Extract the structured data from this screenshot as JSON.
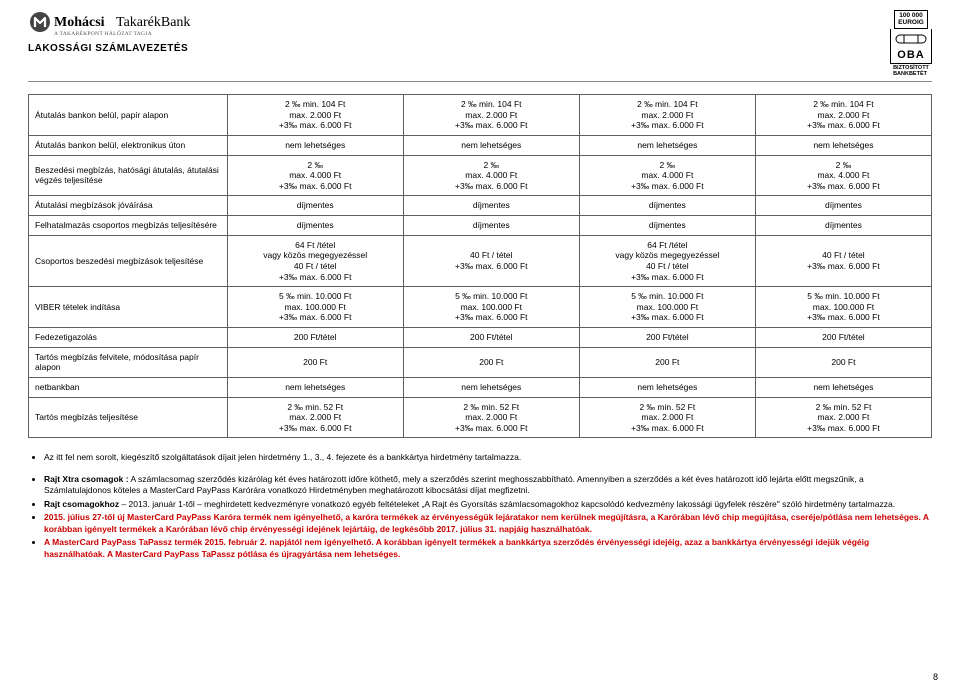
{
  "header": {
    "bank_name": "MohácsiTakarékBank",
    "tagline": "A TAKARÉKPONT HÁLÓZAT TAGJA",
    "subtitle": "LAKOSSÁGI SZÁMLAVEZETÉS",
    "oba_top": "100 000\nEUROIG",
    "oba_logo": "OBA",
    "oba_caption": "BIZTOSÍTOTT\nBANKBETÉT"
  },
  "table": {
    "rows": [
      {
        "label": "Átutalás bankon belül, papír alapon",
        "c1": "2 ‰ min. 104 Ft\nmax. 2.000 Ft\n+3‰ max. 6.000 Ft",
        "c2": "2 ‰ min. 104 Ft\nmax. 2.000 Ft\n+3‰ max. 6.000 Ft",
        "c3": "2 ‰ min. 104 Ft\nmax. 2.000 Ft\n+3‰ max. 6.000 Ft",
        "c4": "2 ‰ min. 104 Ft\nmax. 2.000 Ft\n+3‰ max. 6.000 Ft"
      },
      {
        "label": "Átutalás bankon belül, elektronikus úton",
        "c1": "nem lehetséges",
        "c2": "nem lehetséges",
        "c3": "nem lehetséges",
        "c4": "nem lehetséges"
      },
      {
        "label": "Beszedési megbízás, hatósági átutalás, átutalási végzés teljesítése",
        "c1": "2 ‰\nmax. 4.000 Ft\n+3‰ max. 6.000 Ft",
        "c2": "2 ‰\nmax. 4.000 Ft\n+3‰ max. 6.000 Ft",
        "c3": "2 ‰\nmax. 4.000 Ft\n+3‰ max. 6.000 Ft",
        "c4": "2 ‰\nmax. 4.000 Ft\n+3‰ max. 6.000 Ft"
      },
      {
        "label": "Átutalási megbízások jóváírása",
        "c1": "díjmentes",
        "c2": "díjmentes",
        "c3": "díjmentes",
        "c4": "díjmentes"
      },
      {
        "label": "Felhatalmazás csoportos megbízás teljesítésére",
        "c1": "díjmentes",
        "c2": "díjmentes",
        "c3": "díjmentes",
        "c4": "díjmentes"
      },
      {
        "label": "Csoportos beszedési megbízások teljesítése",
        "c1": "64 Ft /tétel\nvagy közös megegyezéssel\n40 Ft / tétel\n+3‰ max. 6.000 Ft",
        "c2": "40 Ft / tétel\n+3‰ max. 6.000 Ft",
        "c3": "64 Ft /tétel\nvagy közös megegyezéssel\n40 Ft / tétel\n+3‰ max. 6.000 Ft",
        "c4": "40 Ft / tétel\n+3‰ max. 6.000 Ft"
      },
      {
        "label": "VIBER tételek indítása",
        "c1": "5 ‰ min. 10.000 Ft\nmax. 100.000 Ft\n+3‰ max. 6.000 Ft",
        "c2": "5 ‰ min. 10.000 Ft\nmax. 100.000 Ft\n+3‰ max. 6.000 Ft",
        "c3": "5 ‰ min. 10.000 Ft\nmax. 100.000 Ft\n+3‰ max. 6.000 Ft",
        "c4": "5 ‰ min. 10.000 Ft\nmax. 100.000 Ft\n+3‰ max. 6.000 Ft"
      },
      {
        "label": "Fedezetigazolás",
        "c1": "200 Ft/tétel",
        "c2": "200 Ft/tétel",
        "c3": "200 Ft/tétel",
        "c4": "200 Ft/tétel"
      },
      {
        "label": "Tartós megbízás felvitele, módosítása papír alapon",
        "c1": "200 Ft",
        "c2": "200 Ft",
        "c3": "200 Ft",
        "c4": "200 Ft"
      },
      {
        "label": "netbankban",
        "c1": "nem lehetséges",
        "c2": "nem lehetséges",
        "c3": "nem lehetséges",
        "c4": "nem lehetséges"
      },
      {
        "label": "Tartós megbízás teljesítése",
        "c1": "2 ‰ min. 52 Ft\nmax. 2.000 Ft\n+3‰ max. 6.000 Ft",
        "c2": "2 ‰ min. 52 Ft\nmax. 2.000 Ft\n+3‰ max. 6.000 Ft",
        "c3": "2 ‰ min. 52 Ft\nmax. 2.000 Ft\n+3‰ max. 6.000 Ft",
        "c4": "2 ‰ min. 52 Ft\nmax. 2.000 Ft\n+3‰ max. 6.000 Ft"
      }
    ]
  },
  "notes": {
    "n1": "Az itt fel nem sorolt, kiegészítő szolgáltatások díjait jelen hirdetmény 1., 3., 4. fejezete és a bankkártya hirdetmény tartalmazza.",
    "n2b": "Rajt Xtra csomagok :",
    "n2": " A számlacsomag szerződés kizárólag két éves határozott időre köthető, mely a szerződés szerint meghosszabbítható. Amennyiben a szerződés a két éves határozott idő lejárta előtt megszűnik, a Számlatulajdonos köteles a MasterCard PayPass Karórára vonatkozó Hirdetményben meghatározott kibocsátási díjat megfizetni.",
    "n3b": "Rajt csomagokhoz",
    "n3": " – 2013. január 1-től – meghirdetett kedvezményre vonatkozó egyéb feltételeket „A Rajt és Gyorsítás számlacsomagokhoz kapcsolódó kedvezmény lakossági ügyfelek részére\" szóló hirdetmény tartalmazza.",
    "n4": "2015. július 27-től új MasterCard PayPass Karóra termék nem igényelhető, a karóra termékek az érvényességük lejáratakor nem kerülnek megújításra, a Karórában lévő chip megújítása, cseréje/pótlása nem lehetséges. A korábban igényelt termékek a Karórában lévő chip érvényességi idejének lejártáig, de legkésőbb 2017. július 31. napjáig használhatóak.",
    "n5": "A MasterCard PayPass TaPassz termék 2015. február 2. napjától nem igényelhető. A korábban igényelt termékek a bankkártya szerződés érvényességi idejéig, azaz a bankkártya érvényességi idejük végéig használhatóak. A MasterCard PayPass TaPassz pótlása és újragyártása nem lehetséges."
  },
  "page_number": "8",
  "colors": {
    "border": "#5e5e5e",
    "text": "#000000",
    "red": "#cc0000",
    "bg": "#ffffff"
  }
}
